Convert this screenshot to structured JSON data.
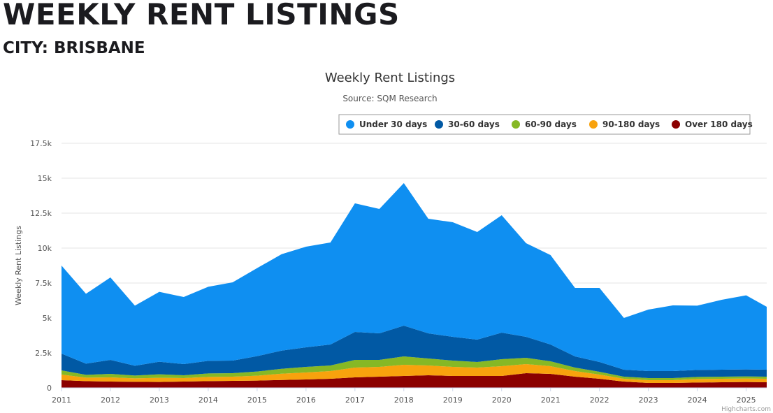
{
  "page": {
    "heading": "WEEKLY RENT LISTINGS",
    "subheading": "CITY: BRISBANE"
  },
  "colors": {
    "under_30": "#0f8ff1",
    "d30_60": "#0159a4",
    "d60_90": "#86b825",
    "d90_180": "#f8a20d",
    "over_180": "#8b0000",
    "grid": "#e6e6e6"
  },
  "chart_data": {
    "type": "area",
    "stacking": "normal",
    "title": "Weekly Rent Listings",
    "subtitle": "Source: SQM Research",
    "ylabel": "Weekly Rent Listings",
    "xlabel": "",
    "ylim": [
      0,
      17500
    ],
    "y_ticks": [
      "0",
      "2.5k",
      "5k",
      "7.5k",
      "10k",
      "12.5k",
      "15k",
      "17.5k"
    ],
    "x_ticks": [
      "2011",
      "2012",
      "2013",
      "2014",
      "2015",
      "2016",
      "2017",
      "2018",
      "2019",
      "2020",
      "2021",
      "2022",
      "2023",
      "2024",
      "2025"
    ],
    "grid": "horizontal",
    "legend_position": "top-right",
    "credits": "Highcharts.com",
    "x_dates": [
      "2011-01",
      "2011-07",
      "2012-01",
      "2012-07",
      "2013-01",
      "2013-07",
      "2014-01",
      "2014-07",
      "2015-01",
      "2015-07",
      "2016-01",
      "2016-07",
      "2017-01",
      "2017-07",
      "2018-01",
      "2018-07",
      "2019-01",
      "2019-07",
      "2020-01",
      "2020-07",
      "2021-01",
      "2021-07",
      "2022-01",
      "2022-07",
      "2023-01",
      "2023-07",
      "2024-01",
      "2024-07",
      "2025-01",
      "2025-06"
    ],
    "x": [
      2011.0,
      2011.5,
      2012.0,
      2012.5,
      2013.0,
      2013.5,
      2014.0,
      2014.5,
      2015.0,
      2015.5,
      2016.0,
      2016.5,
      2017.0,
      2017.5,
      2018.0,
      2018.5,
      2019.0,
      2019.5,
      2020.0,
      2020.5,
      2021.0,
      2021.5,
      2022.0,
      2022.5,
      2023.0,
      2023.5,
      2024.0,
      2024.5,
      2025.0,
      2025.42
    ],
    "series": [
      {
        "name": "Under 30 days",
        "color": "#0f8ff1",
        "values": [
          6300,
          5000,
          5900,
          4300,
          5000,
          4800,
          5300,
          5600,
          6300,
          6900,
          7200,
          7300,
          9200,
          8900,
          10200,
          8200,
          8200,
          7700,
          8400,
          6700,
          6400,
          4900,
          5300,
          3700,
          4400,
          4700,
          4600,
          5000,
          5300,
          4500
        ]
      },
      {
        "name": "30-60 days",
        "color": "#0159a4",
        "values": [
          1200,
          800,
          1000,
          700,
          900,
          800,
          900,
          900,
          1100,
          1300,
          1400,
          1500,
          2000,
          1900,
          2200,
          1800,
          1700,
          1600,
          1900,
          1500,
          1200,
          800,
          700,
          500,
          500,
          500,
          500,
          500,
          500,
          500
        ]
      },
      {
        "name": "60-90 days",
        "color": "#86b825",
        "values": [
          300,
          200,
          250,
          200,
          250,
          200,
          250,
          250,
          300,
          350,
          400,
          400,
          550,
          500,
          600,
          500,
          450,
          400,
          500,
          450,
          350,
          250,
          200,
          150,
          150,
          150,
          150,
          150,
          150,
          150
        ]
      },
      {
        "name": "90-180 days",
        "color": "#f8a20d",
        "values": [
          400,
          250,
          300,
          250,
          300,
          250,
          300,
          300,
          350,
          450,
          500,
          550,
          700,
          700,
          800,
          700,
          650,
          600,
          700,
          650,
          550,
          400,
          300,
          200,
          200,
          200,
          250,
          250,
          250,
          250
        ]
      },
      {
        "name": "Over 180 days",
        "color": "#8b0000",
        "values": [
          550,
          480,
          450,
          430,
          420,
          450,
          480,
          500,
          520,
          560,
          600,
          650,
          750,
          800,
          850,
          900,
          850,
          850,
          850,
          1050,
          1000,
          800,
          650,
          450,
          350,
          350,
          380,
          400,
          420,
          400
        ]
      }
    ]
  }
}
